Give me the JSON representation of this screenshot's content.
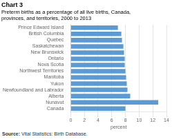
{
  "chart_data": {
    "type": "bar",
    "orientation": "horizontal",
    "title": "Chart 3",
    "subtitle": [
      "Preterm births as a percentage of all live births, Canada,",
      "provinces, and territories, 2000 to 2013"
    ],
    "source": "Source: Vital Statistics: Birth Database.",
    "xlabel": "percent",
    "categories": [
      "Prince Edward Island",
      "British Columbia",
      "Quebec",
      "Saskatchewan",
      "New Brunswick",
      "Ontario",
      "Nova Scotia",
      "Northwest Territories",
      "Manitoba",
      "Yukon",
      "Newfoundland and Labrador",
      "Alberta",
      "Nunavut",
      "Canada"
    ],
    "values": [
      6.9,
      7.4,
      7.5,
      7.7,
      7.8,
      7.9,
      7.9,
      8.0,
      8.1,
      8.2,
      8.3,
      8.7,
      12.8,
      8.0
    ],
    "color": "#5b9bd5",
    "xlim": [
      0,
      14
    ],
    "xticks": [
      0,
      2,
      4,
      6,
      8,
      10,
      12,
      14
    ],
    "grid": true
  }
}
